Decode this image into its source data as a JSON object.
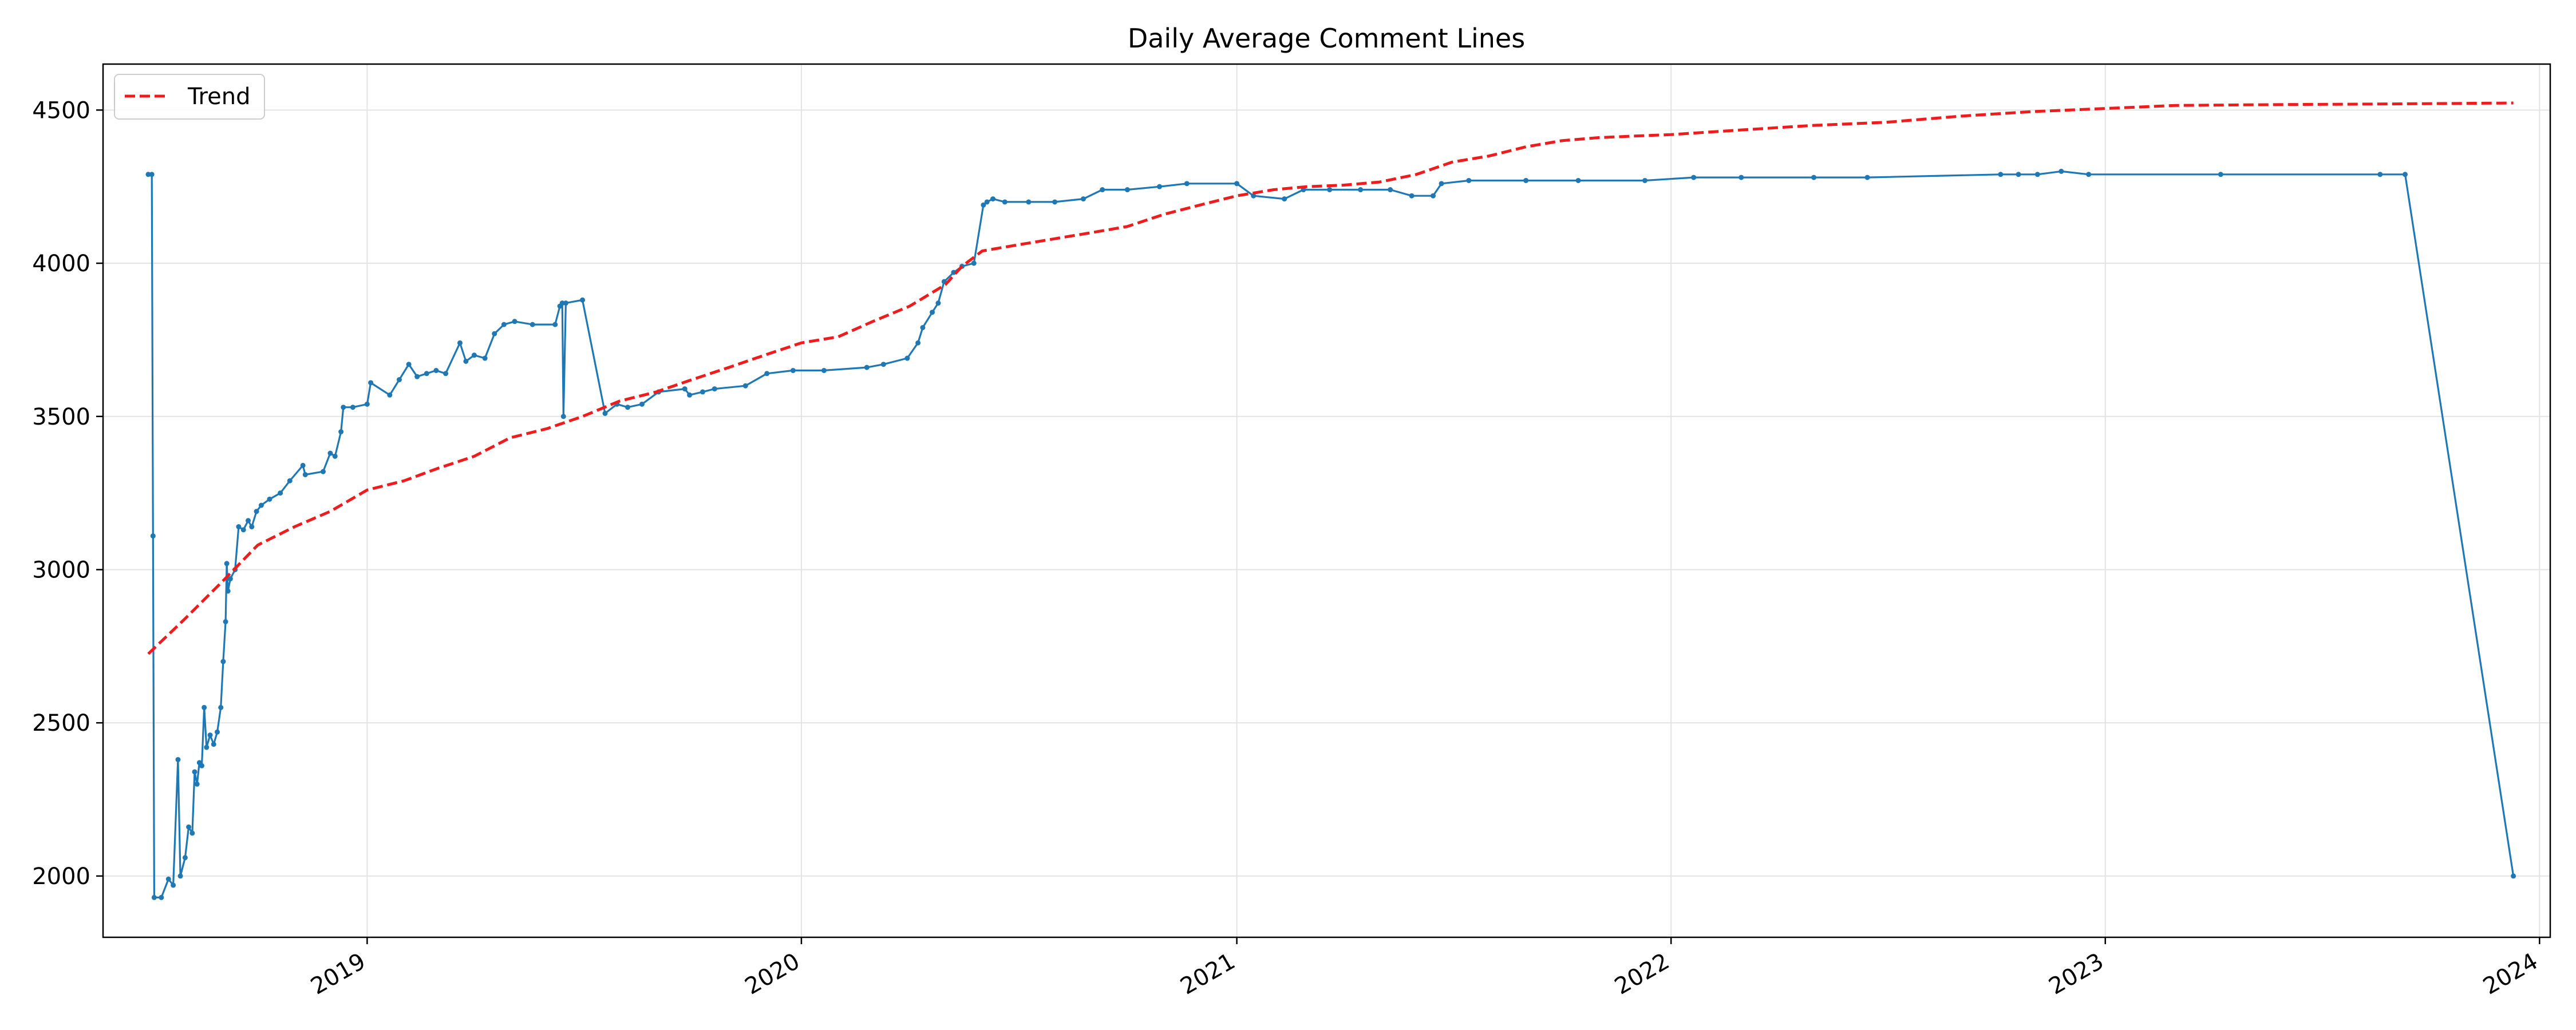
{
  "chart_data": {
    "type": "line",
    "title": "Daily Average Comment Lines",
    "xlabel": "",
    "ylabel": "",
    "x_range": [
      "2018-05-24",
      "2024-01-10"
    ],
    "ylim": [
      1800,
      4650
    ],
    "x_ticks": [
      "2019-01-01",
      "2020-01-01",
      "2021-01-01",
      "2022-01-01",
      "2023-01-01",
      "2024-01-01"
    ],
    "x_tick_labels": [
      "2019",
      "2020",
      "2021",
      "2022",
      "2023",
      "2024"
    ],
    "y_ticks": [
      2000,
      2500,
      3000,
      3500,
      4000,
      4500
    ],
    "y_tick_labels": [
      "2000",
      "2500",
      "3000",
      "3500",
      "4000",
      "4500"
    ],
    "grid": true,
    "legend_position": "top-left",
    "series": [
      {
        "name": "",
        "color": "#1f77b4",
        "style": "solid",
        "markers": true,
        "points": [
          [
            "2018-07-01",
            4290
          ],
          [
            "2018-07-04",
            4290
          ],
          [
            "2018-07-05",
            3110
          ],
          [
            "2018-07-06",
            1930
          ],
          [
            "2018-07-12",
            1930
          ],
          [
            "2018-07-18",
            1990
          ],
          [
            "2018-07-22",
            1970
          ],
          [
            "2018-07-26",
            2380
          ],
          [
            "2018-07-28",
            2000
          ],
          [
            "2018-08-01",
            2060
          ],
          [
            "2018-08-04",
            2160
          ],
          [
            "2018-08-07",
            2140
          ],
          [
            "2018-08-09",
            2340
          ],
          [
            "2018-08-11",
            2300
          ],
          [
            "2018-08-13",
            2370
          ],
          [
            "2018-08-15",
            2360
          ],
          [
            "2018-08-17",
            2550
          ],
          [
            "2018-08-19",
            2420
          ],
          [
            "2018-08-22",
            2460
          ],
          [
            "2018-08-25",
            2430
          ],
          [
            "2018-08-28",
            2470
          ],
          [
            "2018-08-31",
            2550
          ],
          [
            "2018-09-02",
            2700
          ],
          [
            "2018-09-04",
            2830
          ],
          [
            "2018-09-05",
            3020
          ],
          [
            "2018-09-06",
            2930
          ],
          [
            "2018-09-08",
            2970
          ],
          [
            "2018-09-12",
            3000
          ],
          [
            "2018-09-15",
            3140
          ],
          [
            "2018-09-19",
            3130
          ],
          [
            "2018-09-23",
            3160
          ],
          [
            "2018-09-26",
            3140
          ],
          [
            "2018-09-30",
            3190
          ],
          [
            "2018-10-04",
            3210
          ],
          [
            "2018-10-11",
            3230
          ],
          [
            "2018-10-20",
            3250
          ],
          [
            "2018-10-28",
            3290
          ],
          [
            "2018-11-08",
            3340
          ],
          [
            "2018-11-10",
            3310
          ],
          [
            "2018-11-25",
            3320
          ],
          [
            "2018-12-01",
            3380
          ],
          [
            "2018-12-05",
            3370
          ],
          [
            "2018-12-10",
            3450
          ],
          [
            "2018-12-12",
            3530
          ],
          [
            "2018-12-20",
            3530
          ],
          [
            "2019-01-01",
            3540
          ],
          [
            "2019-01-04",
            3610
          ],
          [
            "2019-01-20",
            3570
          ],
          [
            "2019-01-28",
            3620
          ],
          [
            "2019-02-05",
            3670
          ],
          [
            "2019-02-12",
            3630
          ],
          [
            "2019-02-20",
            3640
          ],
          [
            "2019-02-28",
            3650
          ],
          [
            "2019-03-08",
            3640
          ],
          [
            "2019-03-20",
            3740
          ],
          [
            "2019-03-25",
            3680
          ],
          [
            "2019-04-01",
            3700
          ],
          [
            "2019-04-10",
            3690
          ],
          [
            "2019-04-18",
            3770
          ],
          [
            "2019-04-26",
            3800
          ],
          [
            "2019-05-05",
            3810
          ],
          [
            "2019-05-20",
            3800
          ],
          [
            "2019-06-08",
            3800
          ],
          [
            "2019-06-12",
            3860
          ],
          [
            "2019-06-14",
            3870
          ],
          [
            "2019-06-15",
            3500
          ],
          [
            "2019-06-17",
            3870
          ],
          [
            "2019-07-01",
            3880
          ],
          [
            "2019-07-20",
            3510
          ],
          [
            "2019-07-30",
            3540
          ],
          [
            "2019-08-08",
            3530
          ],
          [
            "2019-08-20",
            3540
          ],
          [
            "2019-09-03",
            3580
          ],
          [
            "2019-09-25",
            3590
          ],
          [
            "2019-09-29",
            3570
          ],
          [
            "2019-10-10",
            3580
          ],
          [
            "2019-10-20",
            3590
          ],
          [
            "2019-11-15",
            3600
          ],
          [
            "2019-12-03",
            3640
          ],
          [
            "2019-12-25",
            3650
          ],
          [
            "2020-01-20",
            3650
          ],
          [
            "2020-02-25",
            3660
          ],
          [
            "2020-03-10",
            3670
          ],
          [
            "2020-03-30",
            3690
          ],
          [
            "2020-04-08",
            3740
          ],
          [
            "2020-04-12",
            3790
          ],
          [
            "2020-04-20",
            3840
          ],
          [
            "2020-04-25",
            3870
          ],
          [
            "2020-04-30",
            3940
          ],
          [
            "2020-05-08",
            3970
          ],
          [
            "2020-05-15",
            3990
          ],
          [
            "2020-05-25",
            4000
          ],
          [
            "2020-06-02",
            4190
          ],
          [
            "2020-06-05",
            4200
          ],
          [
            "2020-06-10",
            4210
          ],
          [
            "2020-06-20",
            4200
          ],
          [
            "2020-07-10",
            4200
          ],
          [
            "2020-08-01",
            4200
          ],
          [
            "2020-08-25",
            4210
          ],
          [
            "2020-09-10",
            4240
          ],
          [
            "2020-10-01",
            4240
          ],
          [
            "2020-10-28",
            4250
          ],
          [
            "2020-11-20",
            4260
          ],
          [
            "2021-01-01",
            4260
          ],
          [
            "2021-01-15",
            4220
          ],
          [
            "2021-02-10",
            4210
          ],
          [
            "2021-02-26",
            4240
          ],
          [
            "2021-03-20",
            4240
          ],
          [
            "2021-04-15",
            4240
          ],
          [
            "2021-05-10",
            4240
          ],
          [
            "2021-05-28",
            4220
          ],
          [
            "2021-06-15",
            4220
          ],
          [
            "2021-06-22",
            4260
          ],
          [
            "2021-07-15",
            4270
          ],
          [
            "2021-09-01",
            4270
          ],
          [
            "2021-10-15",
            4270
          ],
          [
            "2021-12-10",
            4270
          ],
          [
            "2022-01-20",
            4280
          ],
          [
            "2022-03-01",
            4280
          ],
          [
            "2022-05-01",
            4280
          ],
          [
            "2022-06-15",
            4280
          ],
          [
            "2022-10-05",
            4290
          ],
          [
            "2022-10-20",
            4290
          ],
          [
            "2022-11-05",
            4290
          ],
          [
            "2022-11-25",
            4300
          ],
          [
            "2022-12-18",
            4290
          ],
          [
            "2023-04-08",
            4290
          ],
          [
            "2023-08-20",
            4290
          ],
          [
            "2023-09-10",
            4290
          ],
          [
            "2023-12-10",
            2000
          ]
        ]
      },
      {
        "name": "Trend",
        "color": "#ee1c1c",
        "style": "dashed",
        "markers": false,
        "points": [
          [
            "2018-07-01",
            2725
          ],
          [
            "2018-08-01",
            2840
          ],
          [
            "2018-09-01",
            2960
          ],
          [
            "2018-10-01",
            3080
          ],
          [
            "2018-11-01",
            3140
          ],
          [
            "2018-12-01",
            3190
          ],
          [
            "2019-01-01",
            3260
          ],
          [
            "2019-02-01",
            3290
          ],
          [
            "2019-03-01",
            3330
          ],
          [
            "2019-04-01",
            3370
          ],
          [
            "2019-05-01",
            3430
          ],
          [
            "2019-06-01",
            3460
          ],
          [
            "2019-07-01",
            3500
          ],
          [
            "2019-08-01",
            3550
          ],
          [
            "2019-09-01",
            3580
          ],
          [
            "2019-10-01",
            3620
          ],
          [
            "2019-11-01",
            3660
          ],
          [
            "2019-12-01",
            3700
          ],
          [
            "2020-01-01",
            3740
          ],
          [
            "2020-02-01",
            3760
          ],
          [
            "2020-03-01",
            3810
          ],
          [
            "2020-04-01",
            3860
          ],
          [
            "2020-05-01",
            3930
          ],
          [
            "2020-05-15",
            3990
          ],
          [
            "2020-06-01",
            4040
          ],
          [
            "2020-07-01",
            4060
          ],
          [
            "2020-08-01",
            4080
          ],
          [
            "2020-09-01",
            4100
          ],
          [
            "2020-10-01",
            4120
          ],
          [
            "2020-11-01",
            4160
          ],
          [
            "2020-12-01",
            4190
          ],
          [
            "2021-01-01",
            4220
          ],
          [
            "2021-02-01",
            4240
          ],
          [
            "2021-03-01",
            4250
          ],
          [
            "2021-04-01",
            4255
          ],
          [
            "2021-05-01",
            4265
          ],
          [
            "2021-06-01",
            4290
          ],
          [
            "2021-07-01",
            4330
          ],
          [
            "2021-08-01",
            4350
          ],
          [
            "2021-09-01",
            4380
          ],
          [
            "2021-10-01",
            4400
          ],
          [
            "2021-11-01",
            4410
          ],
          [
            "2021-12-01",
            4415
          ],
          [
            "2022-01-01",
            4420
          ],
          [
            "2022-03-01",
            4435
          ],
          [
            "2022-05-01",
            4450
          ],
          [
            "2022-07-01",
            4460
          ],
          [
            "2022-09-01",
            4480
          ],
          [
            "2022-11-01",
            4495
          ],
          [
            "2023-01-01",
            4505
          ],
          [
            "2023-03-01",
            4515
          ],
          [
            "2023-06-01",
            4518
          ],
          [
            "2023-09-01",
            4520
          ],
          [
            "2023-12-10",
            4523
          ]
        ]
      }
    ]
  }
}
